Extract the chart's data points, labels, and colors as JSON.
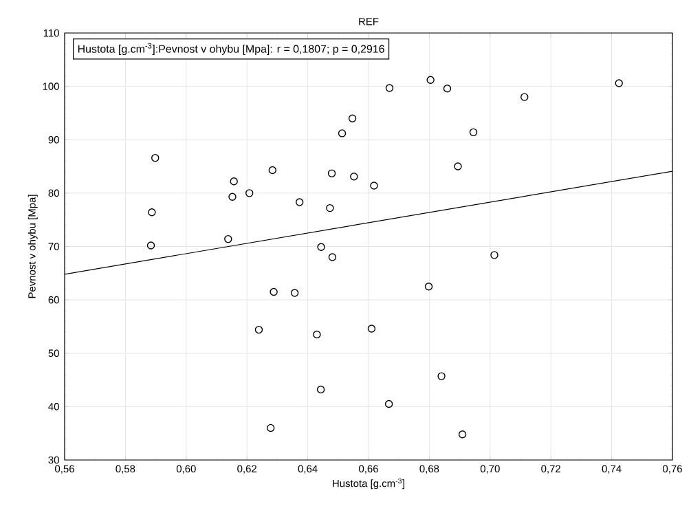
{
  "chart_data": {
    "type": "scatter",
    "title": "REF",
    "xlabel": "Hustota [g.cm$^{-3}$]",
    "ylabel": "Pevnost v ohybu [Mpa]",
    "annotations": [
      "Hustota [g.cm$^{-3}$]:Pevnost v ohybu [Mpa]:   r = 0,1807; p = 0,2916"
    ],
    "xlim": [
      0.56,
      0.76
    ],
    "ylim": [
      30,
      110
    ],
    "xticks": [
      {
        "value": 0.56,
        "label": "0,56"
      },
      {
        "value": 0.58,
        "label": "0,58"
      },
      {
        "value": 0.6,
        "label": "0,60"
      },
      {
        "value": 0.62,
        "label": "0,62"
      },
      {
        "value": 0.64,
        "label": "0,64"
      },
      {
        "value": 0.66,
        "label": "0,66"
      },
      {
        "value": 0.68,
        "label": "0,68"
      },
      {
        "value": 0.7,
        "label": "0,70"
      },
      {
        "value": 0.72,
        "label": "0,72"
      },
      {
        "value": 0.74,
        "label": "0,74"
      },
      {
        "value": 0.76,
        "label": "0,76"
      }
    ],
    "yticks": [
      30,
      40,
      50,
      60,
      70,
      80,
      90,
      100,
      110
    ],
    "grid": true,
    "series": [
      {
        "color": "#000000",
        "marker": "circle",
        "x": [
          0.5898,
          0.5887,
          0.5884,
          0.6157,
          0.6152,
          0.6208,
          0.6284,
          0.6138,
          0.6373,
          0.6473,
          0.6479,
          0.6547,
          0.6513,
          0.6552,
          0.6444,
          0.6618,
          0.6669,
          0.6804,
          0.6859,
          0.7113,
          0.7424,
          0.6945,
          0.6894,
          0.6481,
          0.6288,
          0.6357,
          0.6239,
          0.643,
          0.6443,
          0.6278,
          0.661,
          0.7014,
          0.6798,
          0.684,
          0.6667,
          0.6909
        ],
        "values": [
          86.6,
          76.4,
          70.2,
          82.2,
          79.3,
          80.0,
          84.3,
          71.4,
          78.3,
          77.2,
          83.7,
          94.0,
          91.2,
          83.1,
          69.9,
          81.4,
          99.7,
          101.2,
          99.6,
          98.0,
          100.6,
          91.4,
          85.0,
          68.0,
          61.5,
          61.3,
          54.4,
          53.5,
          43.2,
          36.0,
          54.6,
          68.4,
          62.5,
          45.7,
          40.5,
          34.8
        ]
      },
      {
        "type": "line",
        "color": "#000000",
        "marker": "none",
        "x": [
          0.56,
          0.76
        ],
        "values": [
          64.8,
          84.1
        ]
      }
    ]
  }
}
